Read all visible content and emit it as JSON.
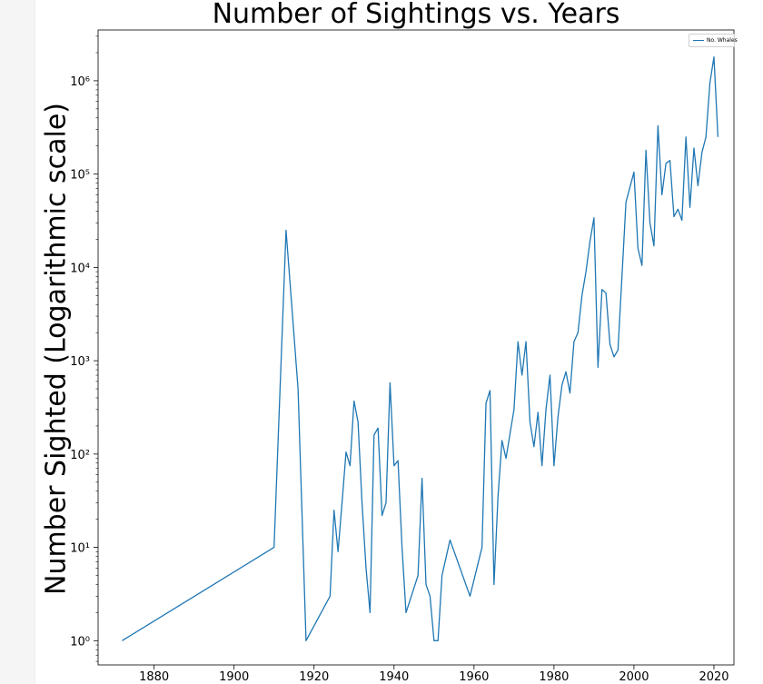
{
  "chart_data": {
    "type": "line",
    "title": "Number of Sightings vs. Years",
    "xlabel": "",
    "ylabel": "Number Sighted (Logarithmic scale)",
    "xlim": [
      1866,
      2025
    ],
    "ylim": [
      0.55,
      3500000
    ],
    "yscale": "log",
    "x_ticks": [
      1880,
      1900,
      1920,
      1940,
      1960,
      1980,
      2000,
      2020
    ],
    "y_ticks": [
      {
        "value": 1,
        "label": "10⁰"
      },
      {
        "value": 10,
        "label": "10¹"
      },
      {
        "value": 100,
        "label": "10²"
      },
      {
        "value": 1000,
        "label": "10³"
      },
      {
        "value": 10000,
        "label": "10⁴"
      },
      {
        "value": 100000,
        "label": "10⁵"
      },
      {
        "value": 1000000,
        "label": "10⁶"
      }
    ],
    "grid": false,
    "legend": {
      "position": "top-right",
      "entries": [
        "No. Whales"
      ]
    },
    "series": [
      {
        "name": "No. Whales",
        "color": "#1f77b4",
        "points": [
          [
            1872,
            1
          ],
          [
            1910,
            10
          ],
          [
            1913,
            25000
          ],
          [
            1916,
            500
          ],
          [
            1918,
            1
          ],
          [
            1924,
            3
          ],
          [
            1925,
            25
          ],
          [
            1926,
            9
          ],
          [
            1927,
            30
          ],
          [
            1928,
            105
          ],
          [
            1929,
            75
          ],
          [
            1930,
            370
          ],
          [
            1931,
            220
          ],
          [
            1932,
            30
          ],
          [
            1933,
            6
          ],
          [
            1934,
            2
          ],
          [
            1935,
            160
          ],
          [
            1936,
            190
          ],
          [
            1937,
            22
          ],
          [
            1938,
            30
          ],
          [
            1939,
            580
          ],
          [
            1940,
            75
          ],
          [
            1941,
            85
          ],
          [
            1942,
            10
          ],
          [
            1943,
            2
          ],
          [
            1946,
            5
          ],
          [
            1947,
            55
          ],
          [
            1948,
            4
          ],
          [
            1949,
            3
          ],
          [
            1950,
            1
          ],
          [
            1951,
            1
          ],
          [
            1952,
            5
          ],
          [
            1954,
            12
          ],
          [
            1959,
            3
          ],
          [
            1962,
            10
          ],
          [
            1963,
            350
          ],
          [
            1964,
            480
          ],
          [
            1965,
            4
          ],
          [
            1966,
            35
          ],
          [
            1967,
            140
          ],
          [
            1968,
            90
          ],
          [
            1970,
            300
          ],
          [
            1971,
            1600
          ],
          [
            1972,
            700
          ],
          [
            1973,
            1600
          ],
          [
            1974,
            220
          ],
          [
            1975,
            120
          ],
          [
            1976,
            280
          ],
          [
            1977,
            75
          ],
          [
            1978,
            300
          ],
          [
            1979,
            700
          ],
          [
            1980,
            75
          ],
          [
            1981,
            250
          ],
          [
            1982,
            550
          ],
          [
            1983,
            760
          ],
          [
            1984,
            450
          ],
          [
            1985,
            1600
          ],
          [
            1986,
            2000
          ],
          [
            1987,
            5000
          ],
          [
            1988,
            9000
          ],
          [
            1989,
            19000
          ],
          [
            1990,
            34000
          ],
          [
            1991,
            850
          ],
          [
            1992,
            5800
          ],
          [
            1993,
            5300
          ],
          [
            1994,
            1500
          ],
          [
            1995,
            1100
          ],
          [
            1996,
            1300
          ],
          [
            1997,
            8000
          ],
          [
            1998,
            50000
          ],
          [
            2000,
            105000
          ],
          [
            2001,
            16000
          ],
          [
            2002,
            10500
          ],
          [
            2003,
            180000
          ],
          [
            2004,
            30000
          ],
          [
            2005,
            17000
          ],
          [
            2006,
            330000
          ],
          [
            2007,
            60000
          ],
          [
            2008,
            130000
          ],
          [
            2009,
            140000
          ],
          [
            2010,
            35000
          ],
          [
            2011,
            42000
          ],
          [
            2012,
            32000
          ],
          [
            2013,
            250000
          ],
          [
            2014,
            44000
          ],
          [
            2015,
            190000
          ],
          [
            2016,
            75000
          ],
          [
            2017,
            170000
          ],
          [
            2018,
            250000
          ],
          [
            2019,
            950000
          ],
          [
            2020,
            1800000
          ],
          [
            2021,
            250000
          ]
        ]
      }
    ]
  }
}
